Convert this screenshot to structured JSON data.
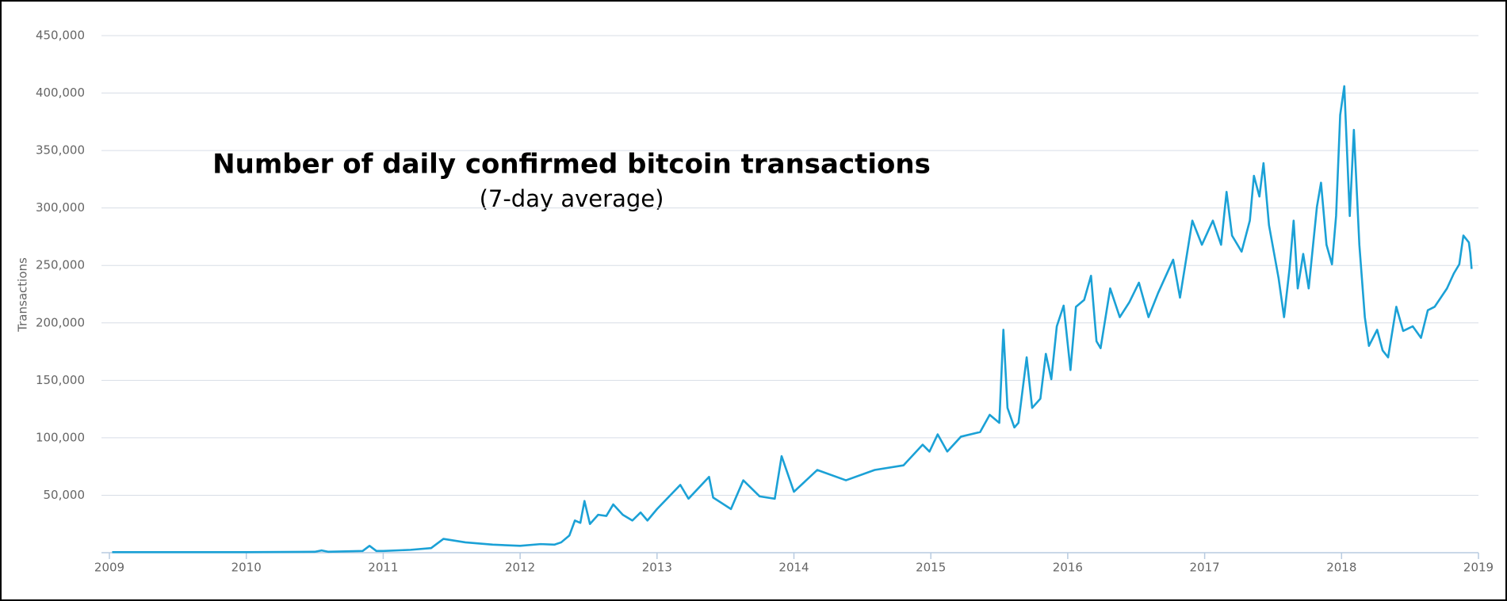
{
  "chart_data": {
    "type": "line",
    "title": "Number of daily confirmed bitcoin transactions",
    "subtitle": "(7-day average)",
    "y_label": "Transactions",
    "xlim": [
      2009,
      2019
    ],
    "xticks": [
      2009,
      2010,
      2011,
      2012,
      2013,
      2014,
      2015,
      2016,
      2017,
      2018,
      2019
    ],
    "ylim": [
      0,
      450000
    ],
    "yticks": [
      {
        "value": 50000,
        "label": "50,000"
      },
      {
        "value": 100000,
        "label": "100,000"
      },
      {
        "value": 150000,
        "label": "150,000"
      },
      {
        "value": 200000,
        "label": "200,000"
      },
      {
        "value": 250000,
        "label": "250,000"
      },
      {
        "value": 300000,
        "label": "300,000"
      },
      {
        "value": 350000,
        "label": "350,000"
      },
      {
        "value": 400000,
        "label": "400,000"
      },
      {
        "value": 450000,
        "label": "450,000"
      }
    ],
    "grid": true,
    "x": [
      2009.02,
      2010.0,
      2010.5,
      2010.55,
      2010.6,
      2010.85,
      2010.9,
      2010.95,
      2011.0,
      2011.2,
      2011.35,
      2011.44,
      2011.6,
      2011.8,
      2012.0,
      2012.15,
      2012.25,
      2012.3,
      2012.36,
      2012.4,
      2012.44,
      2012.47,
      2012.51,
      2012.57,
      2012.63,
      2012.68,
      2012.75,
      2012.82,
      2012.88,
      2012.93,
      2013.0,
      2013.17,
      2013.23,
      2013.38,
      2013.41,
      2013.54,
      2013.63,
      2013.75,
      2013.86,
      2013.91,
      2014.0,
      2014.17,
      2014.38,
      2014.59,
      2014.8,
      2014.94,
      2014.99,
      2015.05,
      2015.12,
      2015.22,
      2015.36,
      2015.43,
      2015.5,
      2015.53,
      2015.56,
      2015.61,
      2015.64,
      2015.7,
      2015.74,
      2015.8,
      2015.84,
      2015.88,
      2015.92,
      2015.97,
      2016.02,
      2016.06,
      2016.12,
      2016.17,
      2016.21,
      2016.24,
      2016.31,
      2016.38,
      2016.45,
      2016.52,
      2016.59,
      2016.66,
      2016.77,
      2016.82,
      2016.91,
      2016.98,
      2017.06,
      2017.12,
      2017.16,
      2017.2,
      2017.27,
      2017.33,
      2017.36,
      2017.4,
      2017.43,
      2017.47,
      2017.54,
      2017.58,
      2017.62,
      2017.65,
      2017.68,
      2017.72,
      2017.76,
      2017.82,
      2017.85,
      2017.89,
      2017.93,
      2017.96,
      2017.99,
      2018.02,
      2018.06,
      2018.09,
      2018.13,
      2018.17,
      2018.2,
      2018.26,
      2018.3,
      2018.34,
      2018.4,
      2018.45,
      2018.52,
      2018.58,
      2018.63,
      2018.68,
      2018.77,
      2018.82,
      2018.86,
      2018.89,
      2018.93,
      2018.94,
      2018.95
    ],
    "series": [
      {
        "name": "Transactions",
        "color": "#1ba1d6",
        "values": [
          500,
          500,
          800,
          2000,
          800,
          1500,
          6000,
          1500,
          1500,
          2500,
          4000,
          12000,
          9000,
          7000,
          6000,
          7500,
          7000,
          9000,
          15000,
          28000,
          26000,
          45000,
          25000,
          33000,
          32000,
          42000,
          33000,
          28000,
          35000,
          28000,
          38000,
          59000,
          47000,
          66000,
          48000,
          38000,
          63000,
          49000,
          47000,
          84000,
          53000,
          72000,
          63000,
          72000,
          76000,
          94000,
          88000,
          103000,
          88000,
          101000,
          105000,
          120000,
          113000,
          194000,
          126000,
          109000,
          113000,
          170000,
          126000,
          134000,
          173000,
          151000,
          197000,
          215000,
          159000,
          214000,
          220000,
          241000,
          184000,
          178000,
          230000,
          205000,
          218000,
          235000,
          205000,
          226000,
          255000,
          222000,
          289000,
          268000,
          289000,
          268000,
          314000,
          276000,
          262000,
          289000,
          328000,
          310000,
          339000,
          285000,
          239000,
          205000,
          247000,
          289000,
          230000,
          260000,
          230000,
          301000,
          322000,
          268000,
          251000,
          293000,
          381000,
          406000,
          293000,
          368000,
          268000,
          205000,
          180000,
          194000,
          176000,
          170000,
          214000,
          193000,
          197000,
          187000,
          211000,
          214000,
          230000,
          243000,
          251000,
          276000,
          270000,
          261000,
          247000
        ]
      }
    ]
  }
}
